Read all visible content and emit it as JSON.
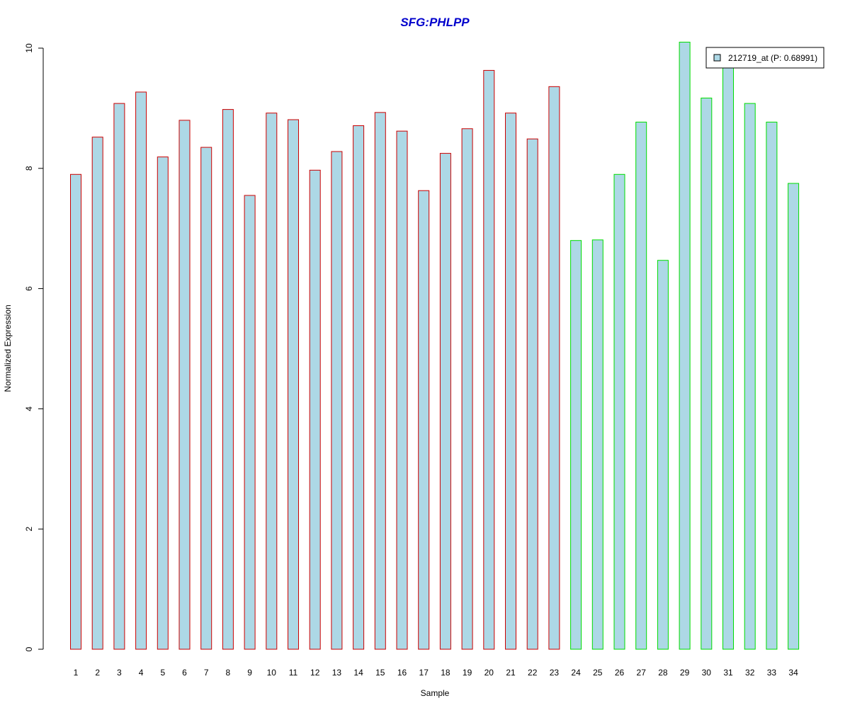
{
  "chart_data": {
    "type": "bar",
    "title": "SFG:PHLPP",
    "xlabel": "Sample",
    "ylabel": "Normalized Expression",
    "ylim": [
      0,
      10
    ],
    "yticks": [
      0,
      2,
      4,
      6,
      8,
      10
    ],
    "categories": [
      "1",
      "2",
      "3",
      "4",
      "5",
      "6",
      "7",
      "8",
      "9",
      "10",
      "11",
      "12",
      "13",
      "14",
      "15",
      "16",
      "17",
      "18",
      "19",
      "20",
      "21",
      "22",
      "23",
      "24",
      "25",
      "26",
      "27",
      "28",
      "29",
      "30",
      "31",
      "32",
      "33",
      "34"
    ],
    "values": [
      7.9,
      8.52,
      9.08,
      9.27,
      8.19,
      8.8,
      8.35,
      8.98,
      7.55,
      8.92,
      8.81,
      7.97,
      8.28,
      8.71,
      8.93,
      8.62,
      7.63,
      8.25,
      8.66,
      9.63,
      8.92,
      8.49,
      9.36,
      6.8,
      6.81,
      7.9,
      8.77,
      6.47,
      10.1,
      9.17,
      9.7,
      9.08,
      8.77,
      7.75
    ],
    "groups": [
      {
        "samples": "1-23",
        "edge_color": "#cc0000"
      },
      {
        "samples": "24-34",
        "edge_color": "#00dd00"
      }
    ],
    "bar_fill": "#add8e6",
    "title_color": "#0000cc",
    "legend": {
      "label": "212719_at (P: 0.68991)",
      "position": "top-right",
      "swatch_color": "#add8e6"
    },
    "grid": false
  }
}
